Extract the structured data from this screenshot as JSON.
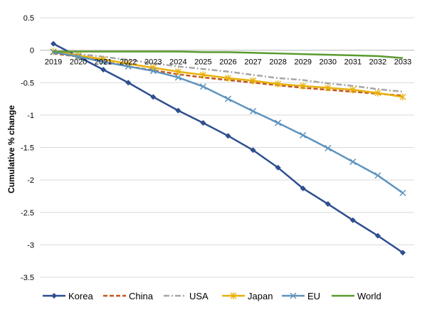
{
  "chart_data": {
    "type": "line",
    "title": "",
    "xlabel": "",
    "ylabel": "Cumulative % change",
    "ylim": [
      -3.5,
      0.5
    ],
    "yticks": [
      0.5,
      0,
      -0.5,
      -1,
      -1.5,
      -2,
      -2.5,
      -3,
      -3.5
    ],
    "ytick_labels": [
      "0.5",
      "0",
      "-0.5",
      "-1",
      "-1.5",
      "-2",
      "-2.5",
      "-3",
      "-3.5"
    ],
    "grid": true,
    "legend_position": "bottom",
    "x": [
      "2019",
      "2020",
      "2021",
      "2022",
      "2023",
      "2024",
      "2025",
      "2026",
      "2027",
      "2028",
      "2029",
      "2030",
      "2031",
      "2032",
      "2033"
    ],
    "series": [
      {
        "name": "Korea",
        "color": "#2E4E8F",
        "dash": "solid",
        "marker": "diamond",
        "values": [
          0.1,
          -0.1,
          -0.3,
          -0.5,
          -0.72,
          -0.93,
          -1.12,
          -1.32,
          -1.54,
          -1.81,
          -2.13,
          -2.37,
          -2.62,
          -2.86,
          -3.12
        ]
      },
      {
        "name": "China",
        "color": "#C0561A",
        "dash": "dash",
        "marker": "none",
        "values": [
          -0.05,
          -0.1,
          -0.17,
          -0.25,
          -0.31,
          -0.37,
          -0.42,
          -0.46,
          -0.5,
          -0.54,
          -0.58,
          -0.61,
          -0.64,
          -0.67,
          -0.7
        ]
      },
      {
        "name": "USA",
        "color": "#A6A6A6",
        "dash": "dashdot",
        "marker": "none",
        "values": [
          -0.03,
          -0.06,
          -0.1,
          -0.15,
          -0.2,
          -0.25,
          -0.29,
          -0.33,
          -0.38,
          -0.43,
          -0.46,
          -0.51,
          -0.55,
          -0.6,
          -0.64
        ]
      },
      {
        "name": "Japan",
        "color": "#E8B00A",
        "dash": "solid",
        "marker": "star",
        "values": [
          -0.02,
          -0.08,
          -0.14,
          -0.21,
          -0.27,
          -0.33,
          -0.38,
          -0.43,
          -0.47,
          -0.52,
          -0.55,
          -0.58,
          -0.61,
          -0.66,
          -0.72
        ]
      },
      {
        "name": "EU",
        "color": "#5E93BE",
        "dash": "solid",
        "marker": "x",
        "values": [
          -0.03,
          -0.1,
          -0.18,
          -0.25,
          -0.32,
          -0.42,
          -0.56,
          -0.75,
          -0.94,
          -1.12,
          -1.31,
          -1.51,
          -1.72,
          -1.93,
          -2.2
        ]
      },
      {
        "name": "World",
        "color": "#5A9A2E",
        "dash": "solid",
        "marker": "none",
        "values": [
          -0.02,
          -0.02,
          -0.02,
          -0.02,
          -0.02,
          -0.02,
          -0.03,
          -0.03,
          -0.04,
          -0.05,
          -0.06,
          -0.07,
          -0.08,
          -0.09,
          -0.12
        ]
      }
    ]
  }
}
